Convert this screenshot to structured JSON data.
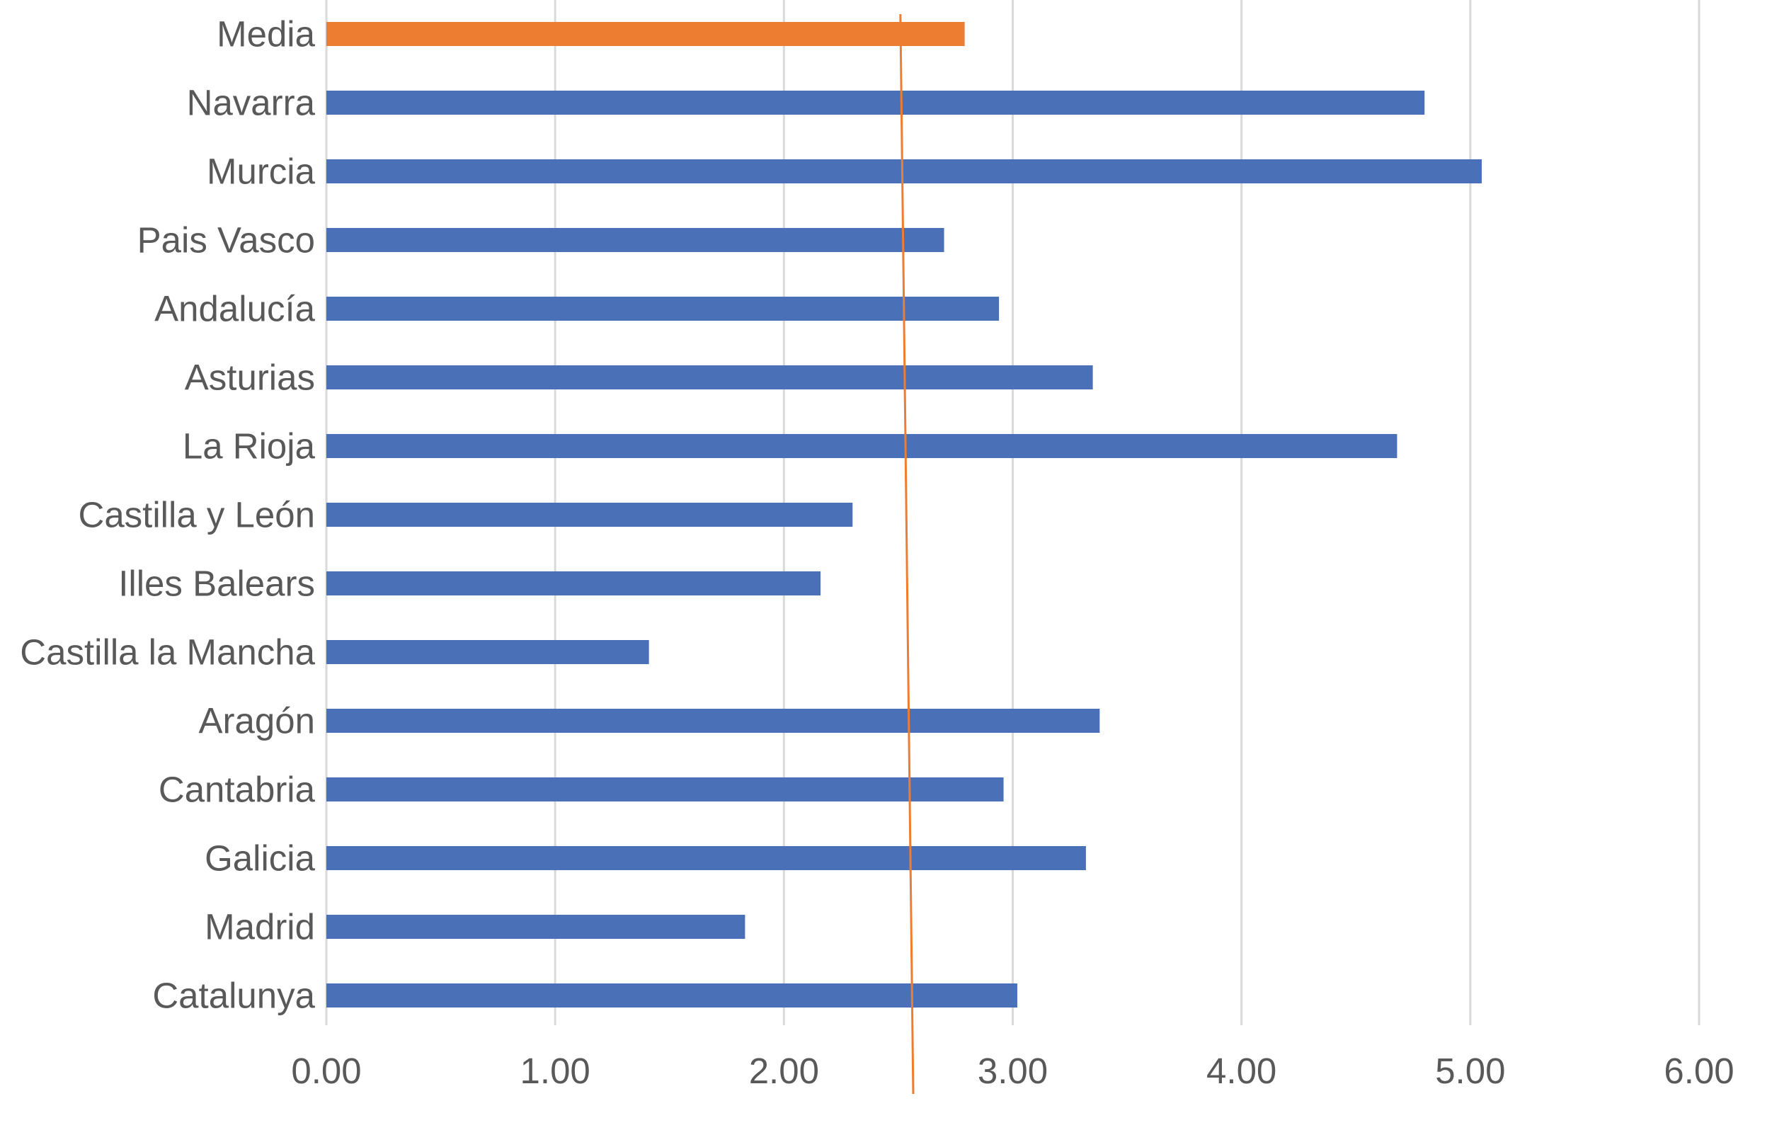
{
  "chart_data": {
    "type": "bar",
    "orientation": "horizontal",
    "title": "",
    "xlabel": "",
    "ylabel": "",
    "xlim": [
      0,
      6
    ],
    "x_ticks": [
      0,
      1,
      2,
      3,
      4,
      5,
      6
    ],
    "x_tick_labels": [
      "0.00",
      "1.00",
      "2.00",
      "3.00",
      "4.00",
      "5.00",
      "6.00"
    ],
    "grid": "vertical",
    "legend": "none",
    "categories": [
      "Media",
      "Navarra",
      "Murcia",
      "Pais Vasco",
      "Andalucía",
      "Asturias",
      "La Rioja",
      "Castilla y León",
      "Illes Balears",
      "Castilla la Mancha",
      "Aragón",
      "Cantabria",
      "Galicia",
      "Madrid",
      "Catalunya"
    ],
    "values": [
      2.79,
      4.8,
      5.05,
      2.7,
      2.94,
      3.35,
      4.68,
      2.3,
      2.16,
      1.41,
      3.38,
      2.96,
      3.32,
      1.83,
      3.02
    ],
    "highlight_category": "Media",
    "trendline": {
      "type": "linear",
      "start": {
        "category": "Media",
        "x": 2.51
      },
      "end": {
        "category": "Catalunya",
        "x": 2.56
      },
      "extends_below_axis": true
    },
    "colors": {
      "bar": "#4a71b8",
      "highlight_bar": "#ed7d31",
      "trendline": "#ed7d31",
      "grid": "#d9d9d9",
      "text": "#595959"
    }
  }
}
